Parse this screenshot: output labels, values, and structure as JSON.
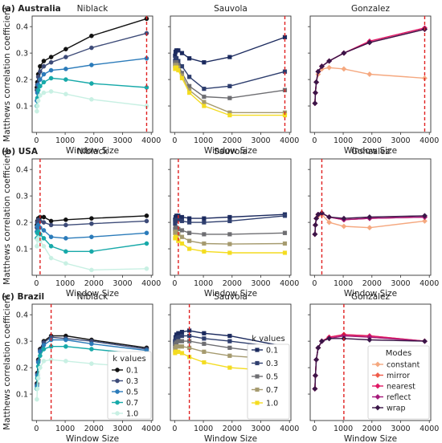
{
  "figure": {
    "ylabel": "Matthews correlation coefficient",
    "xlabel": "Window Size",
    "row_labels": [
      "(a) Australia",
      "(b) USA",
      "(c) Brazil"
    ],
    "column_titles": [
      "Niblack",
      "Sauvola",
      "Gonzalez"
    ],
    "k_legend_title": "k values",
    "modes_legend_title": "Modes",
    "colors": {
      "k": [
        "#111111",
        "#3d4b78",
        "#2b7bba",
        "#17a9a9",
        "#c8f0e3"
      ],
      "sauvola_k": [
        "#1b2a5e",
        "#2e3e6e",
        "#6e6e72",
        "#a59a6e",
        "#f4dc20"
      ],
      "modes": [
        "#f5a87f",
        "#f05c4a",
        "#e01865",
        "#a5187a",
        "#3a1648"
      ],
      "threshold_line": "#e02020"
    }
  },
  "chart_data": [
    {
      "type": "line",
      "row": 0,
      "col": 0,
      "method": "Niblack",
      "row_label": "(a) Australia",
      "x": [
        15,
        31,
        63,
        127,
        255,
        511,
        1023,
        1919,
        3839
      ],
      "xlim": [
        -150,
        4050
      ],
      "ylim": [
        0,
        0.44
      ],
      "xticks": [
        0,
        1000,
        2000,
        3000,
        4000
      ],
      "yticks": [
        0.1,
        0.2,
        0.3,
        0.4
      ],
      "vline": 3839,
      "series": [
        {
          "name": "0.1",
          "values": [
            0.17,
            0.19,
            0.22,
            0.25,
            0.27,
            0.285,
            0.315,
            0.365,
            0.43
          ]
        },
        {
          "name": "0.3",
          "values": [
            0.16,
            0.18,
            0.21,
            0.23,
            0.25,
            0.265,
            0.285,
            0.32,
            0.375
          ]
        },
        {
          "name": "0.5",
          "values": [
            0.12,
            0.15,
            0.18,
            0.2,
            0.22,
            0.235,
            0.24,
            0.255,
            0.28
          ]
        },
        {
          "name": "0.7",
          "values": [
            0.1,
            0.13,
            0.16,
            0.175,
            0.19,
            0.205,
            0.2,
            0.185,
            0.17
          ]
        },
        {
          "name": "1.0",
          "values": [
            0.08,
            0.1,
            0.12,
            0.14,
            0.15,
            0.155,
            0.145,
            0.125,
            0.1
          ]
        }
      ]
    },
    {
      "type": "line",
      "row": 0,
      "col": 1,
      "method": "Sauvola",
      "x": [
        15,
        31,
        63,
        127,
        255,
        511,
        1023,
        1919,
        3839
      ],
      "xlim": [
        -150,
        4050
      ],
      "ylim": [
        0,
        0.44
      ],
      "xticks": [
        0,
        1000,
        2000,
        3000,
        4000
      ],
      "yticks": [
        0.1,
        0.2,
        0.3,
        0.4
      ],
      "vline": 3839,
      "series": [
        {
          "name": "0.1",
          "values": [
            0.29,
            0.305,
            0.31,
            0.31,
            0.3,
            0.28,
            0.265,
            0.285,
            0.36
          ]
        },
        {
          "name": "0.3",
          "values": [
            0.27,
            0.28,
            0.28,
            0.27,
            0.25,
            0.21,
            0.165,
            0.175,
            0.23
          ]
        },
        {
          "name": "0.5",
          "values": [
            0.26,
            0.265,
            0.265,
            0.255,
            0.225,
            0.175,
            0.135,
            0.13,
            0.16
          ]
        },
        {
          "name": "0.7",
          "values": [
            0.25,
            0.255,
            0.255,
            0.245,
            0.215,
            0.16,
            0.115,
            0.075,
            0.075
          ]
        },
        {
          "name": "1.0",
          "values": [
            0.24,
            0.245,
            0.245,
            0.235,
            0.205,
            0.15,
            0.1,
            0.065,
            0.065
          ]
        }
      ]
    },
    {
      "type": "line",
      "row": 0,
      "col": 2,
      "method": "Gonzalez",
      "x": [
        15,
        31,
        63,
        127,
        255,
        511,
        1023,
        1919,
        3839
      ],
      "xlim": [
        -150,
        4050
      ],
      "ylim": [
        0,
        0.44
      ],
      "xticks": [
        0,
        1000,
        2000,
        3000,
        4000
      ],
      "yticks": [
        0.1,
        0.2,
        0.3,
        0.4
      ],
      "vline": 3839,
      "series": [
        {
          "name": "constant",
          "values": [
            0.11,
            0.15,
            0.19,
            0.22,
            0.24,
            0.245,
            0.24,
            0.22,
            0.205
          ]
        },
        {
          "name": "mirror",
          "values": [
            0.11,
            0.15,
            0.19,
            0.23,
            0.25,
            0.27,
            0.3,
            0.34,
            0.39
          ]
        },
        {
          "name": "nearest",
          "values": [
            0.11,
            0.15,
            0.19,
            0.23,
            0.25,
            0.27,
            0.3,
            0.345,
            0.395
          ]
        },
        {
          "name": "reflect",
          "values": [
            0.11,
            0.15,
            0.19,
            0.23,
            0.25,
            0.27,
            0.3,
            0.34,
            0.39
          ]
        },
        {
          "name": "wrap",
          "values": [
            0.11,
            0.15,
            0.19,
            0.23,
            0.25,
            0.27,
            0.3,
            0.34,
            0.39
          ]
        }
      ]
    },
    {
      "type": "line",
      "row": 1,
      "col": 0,
      "method": "Niblack",
      "row_label": "(b) USA",
      "x": [
        15,
        31,
        63,
        127,
        255,
        511,
        1023,
        1919,
        3839
      ],
      "xlim": [
        -150,
        4050
      ],
      "ylim": [
        0,
        0.44
      ],
      "xticks": [
        0,
        1000,
        2000,
        3000,
        4000
      ],
      "yticks": [
        0.1,
        0.2,
        0.3,
        0.4
      ],
      "vline": 127,
      "series": [
        {
          "name": "0.1",
          "values": [
            0.19,
            0.205,
            0.215,
            0.22,
            0.22,
            0.205,
            0.21,
            0.215,
            0.225
          ]
        },
        {
          "name": "0.3",
          "values": [
            0.18,
            0.2,
            0.21,
            0.205,
            0.2,
            0.19,
            0.19,
            0.195,
            0.205
          ]
        },
        {
          "name": "0.5",
          "values": [
            0.165,
            0.185,
            0.19,
            0.18,
            0.17,
            0.145,
            0.14,
            0.145,
            0.16
          ]
        },
        {
          "name": "0.7",
          "values": [
            0.14,
            0.16,
            0.165,
            0.155,
            0.14,
            0.11,
            0.09,
            0.09,
            0.12
          ]
        },
        {
          "name": "1.0",
          "values": [
            0.11,
            0.135,
            0.14,
            0.13,
            0.11,
            0.065,
            0.045,
            0.02,
            0.025
          ]
        }
      ]
    },
    {
      "type": "line",
      "row": 1,
      "col": 1,
      "method": "Sauvola",
      "x": [
        15,
        31,
        63,
        127,
        255,
        511,
        1023,
        1919,
        3839
      ],
      "xlim": [
        -150,
        4050
      ],
      "ylim": [
        0,
        0.44
      ],
      "xticks": [
        0,
        1000,
        2000,
        3000,
        4000
      ],
      "yticks": [
        0.1,
        0.2,
        0.3,
        0.4
      ],
      "vline": 127,
      "series": [
        {
          "name": "0.1",
          "values": [
            0.21,
            0.22,
            0.225,
            0.225,
            0.22,
            0.215,
            0.215,
            0.22,
            0.23
          ]
        },
        {
          "name": "0.3",
          "values": [
            0.195,
            0.205,
            0.21,
            0.21,
            0.205,
            0.2,
            0.2,
            0.205,
            0.225
          ]
        },
        {
          "name": "0.5",
          "values": [
            0.175,
            0.18,
            0.18,
            0.175,
            0.17,
            0.16,
            0.155,
            0.155,
            0.16
          ]
        },
        {
          "name": "0.7",
          "values": [
            0.16,
            0.165,
            0.16,
            0.155,
            0.145,
            0.13,
            0.12,
            0.118,
            0.12
          ]
        },
        {
          "name": "1.0",
          "values": [
            0.14,
            0.145,
            0.14,
            0.13,
            0.12,
            0.1,
            0.09,
            0.085,
            0.085
          ]
        }
      ]
    },
    {
      "type": "line",
      "row": 1,
      "col": 2,
      "method": "Gonzalez",
      "x": [
        15,
        31,
        63,
        127,
        255,
        511,
        1023,
        1919,
        3839
      ],
      "xlim": [
        -150,
        4050
      ],
      "ylim": [
        0,
        0.44
      ],
      "xticks": [
        0,
        1000,
        2000,
        3000,
        4000
      ],
      "yticks": [
        0.1,
        0.2,
        0.3,
        0.4
      ],
      "vline": 255,
      "series": [
        {
          "name": "constant",
          "values": [
            0.155,
            0.19,
            0.215,
            0.225,
            0.23,
            0.2,
            0.185,
            0.18,
            0.205
          ]
        },
        {
          "name": "mirror",
          "values": [
            0.155,
            0.19,
            0.215,
            0.23,
            0.235,
            0.22,
            0.21,
            0.215,
            0.22
          ]
        },
        {
          "name": "nearest",
          "values": [
            0.155,
            0.19,
            0.215,
            0.23,
            0.235,
            0.22,
            0.21,
            0.215,
            0.22
          ]
        },
        {
          "name": "reflect",
          "values": [
            0.155,
            0.19,
            0.215,
            0.23,
            0.235,
            0.22,
            0.21,
            0.215,
            0.22
          ]
        },
        {
          "name": "wrap",
          "values": [
            0.155,
            0.19,
            0.215,
            0.23,
            0.235,
            0.22,
            0.215,
            0.22,
            0.225
          ]
        }
      ]
    },
    {
      "type": "line",
      "row": 2,
      "col": 0,
      "method": "Niblack",
      "row_label": "(c) Brazil",
      "x": [
        15,
        31,
        63,
        127,
        255,
        511,
        1023,
        1919,
        3839
      ],
      "xlim": [
        -150,
        4050
      ],
      "ylim": [
        0,
        0.44
      ],
      "xticks": [
        0,
        1000,
        2000,
        3000,
        4000
      ],
      "yticks": [
        0.1,
        0.2,
        0.3,
        0.4
      ],
      "vline": 511,
      "series": [
        {
          "name": "0.1",
          "values": [
            0.14,
            0.18,
            0.23,
            0.27,
            0.3,
            0.32,
            0.32,
            0.305,
            0.275
          ]
        },
        {
          "name": "0.3",
          "values": [
            0.135,
            0.175,
            0.225,
            0.265,
            0.295,
            0.315,
            0.31,
            0.3,
            0.27
          ]
        },
        {
          "name": "0.5",
          "values": [
            0.13,
            0.17,
            0.22,
            0.26,
            0.285,
            0.305,
            0.305,
            0.29,
            0.265
          ]
        },
        {
          "name": "0.7",
          "values": [
            0.12,
            0.16,
            0.205,
            0.245,
            0.27,
            0.28,
            0.28,
            0.27,
            0.25
          ]
        },
        {
          "name": "1.0",
          "values": [
            0.08,
            0.12,
            0.16,
            0.2,
            0.225,
            0.23,
            0.225,
            0.215,
            0.2
          ]
        }
      ]
    },
    {
      "type": "line",
      "row": 2,
      "col": 1,
      "method": "Sauvola",
      "x": [
        15,
        31,
        63,
        127,
        255,
        511,
        1023,
        1919,
        3839
      ],
      "xlim": [
        -150,
        4050
      ],
      "ylim": [
        0,
        0.44
      ],
      "xticks": [
        0,
        1000,
        2000,
        3000,
        4000
      ],
      "yticks": [
        0.1,
        0.2,
        0.3,
        0.4
      ],
      "vline": 511,
      "series": [
        {
          "name": "0.1",
          "values": [
            0.3,
            0.315,
            0.325,
            0.33,
            0.335,
            0.34,
            0.33,
            0.32,
            0.28
          ]
        },
        {
          "name": "0.3",
          "values": [
            0.29,
            0.3,
            0.31,
            0.315,
            0.32,
            0.32,
            0.31,
            0.3,
            0.275
          ]
        },
        {
          "name": "0.5",
          "values": [
            0.28,
            0.29,
            0.295,
            0.3,
            0.3,
            0.3,
            0.29,
            0.275,
            0.25
          ]
        },
        {
          "name": "0.7",
          "values": [
            0.265,
            0.275,
            0.28,
            0.28,
            0.28,
            0.275,
            0.26,
            0.245,
            0.23
          ]
        },
        {
          "name": "1.0",
          "values": [
            0.255,
            0.26,
            0.26,
            0.26,
            0.255,
            0.24,
            0.22,
            0.2,
            0.185
          ]
        }
      ]
    },
    {
      "type": "line",
      "row": 2,
      "col": 2,
      "method": "Gonzalez",
      "x": [
        15,
        31,
        63,
        127,
        255,
        511,
        1023,
        1919,
        3839
      ],
      "xlim": [
        -150,
        4050
      ],
      "ylim": [
        0,
        0.44
      ],
      "xticks": [
        0,
        1000,
        2000,
        3000,
        4000
      ],
      "yticks": [
        0.1,
        0.2,
        0.3,
        0.4
      ],
      "vline": 1023,
      "series": [
        {
          "name": "constant",
          "values": [
            0.12,
            0.17,
            0.23,
            0.275,
            0.3,
            0.315,
            0.325,
            0.315,
            0.3
          ]
        },
        {
          "name": "mirror",
          "values": [
            0.12,
            0.17,
            0.23,
            0.275,
            0.3,
            0.315,
            0.325,
            0.32,
            0.3
          ]
        },
        {
          "name": "nearest",
          "values": [
            0.12,
            0.17,
            0.23,
            0.275,
            0.3,
            0.315,
            0.325,
            0.32,
            0.3
          ]
        },
        {
          "name": "reflect",
          "values": [
            0.12,
            0.17,
            0.23,
            0.275,
            0.3,
            0.31,
            0.32,
            0.315,
            0.3
          ]
        },
        {
          "name": "wrap",
          "values": [
            0.12,
            0.17,
            0.23,
            0.275,
            0.3,
            0.31,
            0.31,
            0.305,
            0.3
          ]
        }
      ]
    }
  ]
}
